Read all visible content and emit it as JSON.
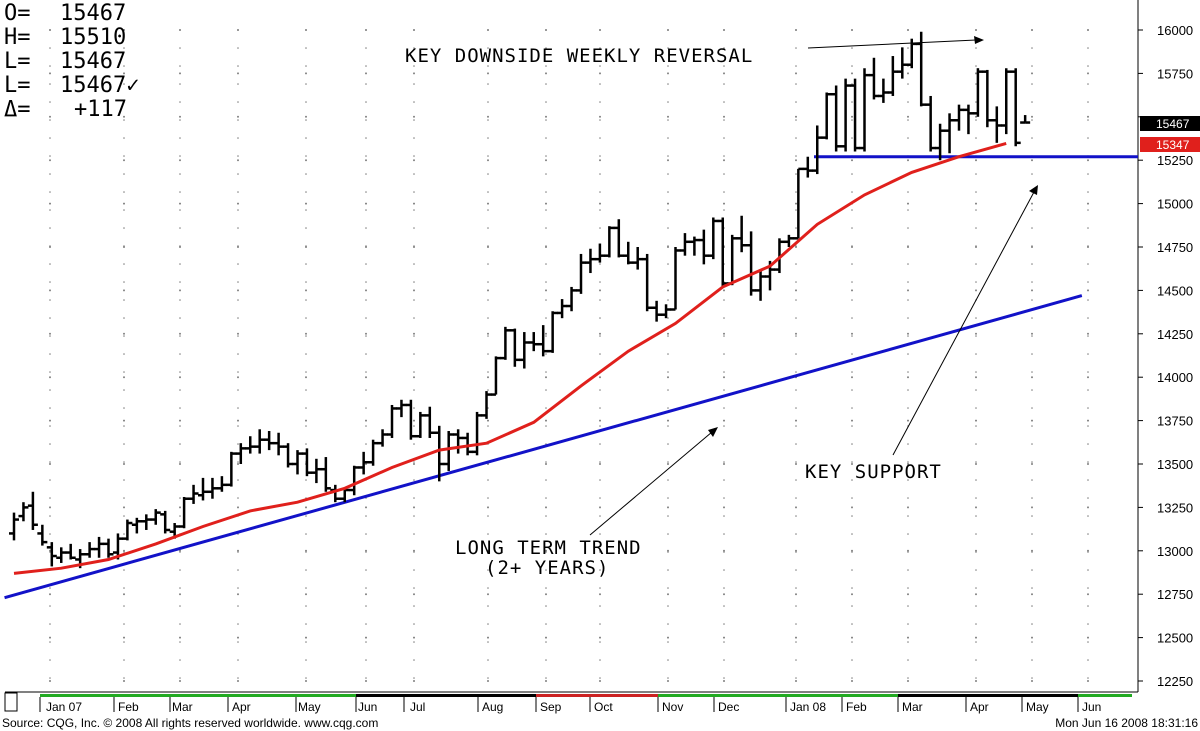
{
  "colors": {
    "background": "#ffffff",
    "price_bars": "#000000",
    "moving_average": "#e0201c",
    "trend_line": "#1212c8",
    "support_line": "#1212c8",
    "last_price_box": "#000000",
    "ma_value_box": "#e0201c",
    "grid_dots": "#808080",
    "timeline_green": "#22aa22",
    "timeline_red": "#cc2222",
    "timeline_black": "#000000"
  },
  "ohlc": [
    {
      "label": "O=",
      "value": "15467"
    },
    {
      "label": "H=",
      "value": "15510"
    },
    {
      "label": "L=",
      "value": "15467"
    },
    {
      "label": "L=",
      "value": "15467✓"
    },
    {
      "label": "Δ=",
      "value": "+117"
    }
  ],
  "annotations": {
    "reversal": "KEY DOWNSIDE WEEKLY REVERSAL",
    "support": "KEY SUPPORT",
    "trend_line1": "LONG TERM TREND",
    "trend_line2": "(2+ YEARS)"
  },
  "last_labels": {
    "price": "15467",
    "moving_average": "15347"
  },
  "footer": {
    "source": "Source: CQG, Inc. © 2008 All rights reserved worldwide. www.cqg.com",
    "timestamp": "Mon Jun 16 2008 18:31:16"
  },
  "chart_data": {
    "type": "ohlc-bar",
    "ylim": [
      12250,
      16000
    ],
    "y_ticks": [
      12250,
      12500,
      12750,
      13000,
      13250,
      13500,
      13750,
      14000,
      14250,
      14500,
      14750,
      15000,
      15250,
      15500,
      15750,
      16000
    ],
    "y_tick_labels": [
      "12250",
      "12500",
      "12750",
      "13000",
      "13250",
      "13500",
      "13750",
      "14000",
      "14250",
      "14500",
      "14750",
      "15000",
      "15250",
      "",
      "15750",
      "16000"
    ],
    "months": [
      "Jan 07",
      "Feb",
      "Mar",
      "Apr",
      "May",
      "Jun",
      "Jul",
      "Aug",
      "Sep",
      "Oct",
      "Nov",
      "Dec",
      "Jan 08",
      "Feb",
      "Mar",
      "Apr",
      "May",
      "Jun"
    ],
    "timeline_colors": [
      "green",
      "green",
      "green",
      "green",
      "green",
      "black",
      "black",
      "black",
      "red",
      "red",
      "green",
      "green",
      "green",
      "green",
      "black",
      "black",
      "black",
      "green"
    ],
    "bars": [
      {
        "o": 13100,
        "h": 13220,
        "l": 13060,
        "c": 13180
      },
      {
        "o": 13200,
        "h": 13280,
        "l": 13170,
        "c": 13250
      },
      {
        "o": 13260,
        "h": 13340,
        "l": 13120,
        "c": 13150
      },
      {
        "o": 13100,
        "h": 13150,
        "l": 13030,
        "c": 13050
      },
      {
        "o": 13020,
        "h": 13050,
        "l": 12910,
        "c": 12970
      },
      {
        "o": 12960,
        "h": 13020,
        "l": 12930,
        "c": 12990
      },
      {
        "o": 12990,
        "h": 13040,
        "l": 12950,
        "c": 12960
      },
      {
        "o": 12950,
        "h": 13010,
        "l": 12900,
        "c": 12980
      },
      {
        "o": 12980,
        "h": 13050,
        "l": 12960,
        "c": 13010
      },
      {
        "o": 13010,
        "h": 13080,
        "l": 12960,
        "c": 13040
      },
      {
        "o": 13040,
        "h": 13070,
        "l": 12960,
        "c": 12980
      },
      {
        "o": 12990,
        "h": 13100,
        "l": 12950,
        "c": 13070
      },
      {
        "o": 13070,
        "h": 13180,
        "l": 13060,
        "c": 13160
      },
      {
        "o": 13150,
        "h": 13190,
        "l": 13100,
        "c": 13170
      },
      {
        "o": 13170,
        "h": 13210,
        "l": 13120,
        "c": 13180
      },
      {
        "o": 13180,
        "h": 13240,
        "l": 13150,
        "c": 13220
      },
      {
        "o": 13210,
        "h": 13230,
        "l": 13100,
        "c": 13120
      },
      {
        "o": 13110,
        "h": 13160,
        "l": 13070,
        "c": 13140
      },
      {
        "o": 13140,
        "h": 13310,
        "l": 13130,
        "c": 13300
      },
      {
        "o": 13300,
        "h": 13380,
        "l": 13270,
        "c": 13330
      },
      {
        "o": 13320,
        "h": 13420,
        "l": 13290,
        "c": 13340
      },
      {
        "o": 13340,
        "h": 13420,
        "l": 13300,
        "c": 13360
      },
      {
        "o": 13360,
        "h": 13430,
        "l": 13340,
        "c": 13380
      },
      {
        "o": 13380,
        "h": 13570,
        "l": 13370,
        "c": 13560
      },
      {
        "o": 13560,
        "h": 13620,
        "l": 13500,
        "c": 13590
      },
      {
        "o": 13590,
        "h": 13660,
        "l": 13560,
        "c": 13600
      },
      {
        "o": 13600,
        "h": 13700,
        "l": 13560,
        "c": 13640
      },
      {
        "o": 13640,
        "h": 13690,
        "l": 13580,
        "c": 13620
      },
      {
        "o": 13620,
        "h": 13680,
        "l": 13550,
        "c": 13600
      },
      {
        "o": 13600,
        "h": 13620,
        "l": 13480,
        "c": 13500
      },
      {
        "o": 13500,
        "h": 13580,
        "l": 13440,
        "c": 13560
      },
      {
        "o": 13560,
        "h": 13590,
        "l": 13430,
        "c": 13450
      },
      {
        "o": 13450,
        "h": 13530,
        "l": 13390,
        "c": 13470
      },
      {
        "o": 13470,
        "h": 13540,
        "l": 13340,
        "c": 13360
      },
      {
        "o": 13350,
        "h": 13380,
        "l": 13280,
        "c": 13300
      },
      {
        "o": 13300,
        "h": 13360,
        "l": 13280,
        "c": 13350
      },
      {
        "o": 13350,
        "h": 13490,
        "l": 13320,
        "c": 13480
      },
      {
        "o": 13480,
        "h": 13570,
        "l": 13440,
        "c": 13510
      },
      {
        "o": 13510,
        "h": 13640,
        "l": 13490,
        "c": 13620
      },
      {
        "o": 13620,
        "h": 13700,
        "l": 13600,
        "c": 13670
      },
      {
        "o": 13670,
        "h": 13840,
        "l": 13650,
        "c": 13820
      },
      {
        "o": 13820,
        "h": 13870,
        "l": 13770,
        "c": 13840
      },
      {
        "o": 13840,
        "h": 13870,
        "l": 13640,
        "c": 13660
      },
      {
        "o": 13660,
        "h": 13800,
        "l": 13650,
        "c": 13780
      },
      {
        "o": 13780,
        "h": 13830,
        "l": 13650,
        "c": 13680
      },
      {
        "o": 13680,
        "h": 13720,
        "l": 13400,
        "c": 13500
      },
      {
        "o": 13500,
        "h": 13690,
        "l": 13460,
        "c": 13670
      },
      {
        "o": 13670,
        "h": 13700,
        "l": 13560,
        "c": 13650
      },
      {
        "o": 13650,
        "h": 13680,
        "l": 13550,
        "c": 13570
      },
      {
        "o": 13570,
        "h": 13800,
        "l": 13550,
        "c": 13780
      },
      {
        "o": 13780,
        "h": 13920,
        "l": 13760,
        "c": 13900
      },
      {
        "o": 13900,
        "h": 14120,
        "l": 13900,
        "c": 14110
      },
      {
        "o": 14110,
        "h": 14290,
        "l": 14100,
        "c": 14270
      },
      {
        "o": 14270,
        "h": 14280,
        "l": 14060,
        "c": 14100
      },
      {
        "o": 14100,
        "h": 14260,
        "l": 14050,
        "c": 14200
      },
      {
        "o": 14200,
        "h": 14260,
        "l": 14150,
        "c": 14190
      },
      {
        "o": 14190,
        "h": 14300,
        "l": 14120,
        "c": 14150
      },
      {
        "o": 14150,
        "h": 14380,
        "l": 14140,
        "c": 14370
      },
      {
        "o": 14370,
        "h": 14450,
        "l": 14340,
        "c": 14410
      },
      {
        "o": 14410,
        "h": 14520,
        "l": 14380,
        "c": 14500
      },
      {
        "o": 14500,
        "h": 14710,
        "l": 14480,
        "c": 14660
      },
      {
        "o": 14660,
        "h": 14740,
        "l": 14600,
        "c": 14680
      },
      {
        "o": 14680,
        "h": 14770,
        "l": 14660,
        "c": 14700
      },
      {
        "o": 14700,
        "h": 14870,
        "l": 14690,
        "c": 14860
      },
      {
        "o": 14860,
        "h": 14910,
        "l": 14690,
        "c": 14700
      },
      {
        "o": 14700,
        "h": 14780,
        "l": 14650,
        "c": 14660
      },
      {
        "o": 14660,
        "h": 14750,
        "l": 14620,
        "c": 14680
      },
      {
        "o": 14680,
        "h": 14710,
        "l": 14380,
        "c": 14400
      },
      {
        "o": 14400,
        "h": 14440,
        "l": 14320,
        "c": 14360
      },
      {
        "o": 14360,
        "h": 14420,
        "l": 14340,
        "c": 14390
      },
      {
        "o": 14390,
        "h": 14750,
        "l": 14390,
        "c": 14730
      },
      {
        "o": 14730,
        "h": 14830,
        "l": 14700,
        "c": 14780
      },
      {
        "o": 14780,
        "h": 14810,
        "l": 14700,
        "c": 14790
      },
      {
        "o": 14790,
        "h": 14850,
        "l": 14650,
        "c": 14700
      },
      {
        "o": 14700,
        "h": 14920,
        "l": 14680,
        "c": 14900
      },
      {
        "o": 14900,
        "h": 14920,
        "l": 14520,
        "c": 14540
      },
      {
        "o": 14540,
        "h": 14820,
        "l": 14530,
        "c": 14800
      },
      {
        "o": 14800,
        "h": 14930,
        "l": 14720,
        "c": 14760
      },
      {
        "o": 14760,
        "h": 14840,
        "l": 14470,
        "c": 14500
      },
      {
        "o": 14500,
        "h": 14620,
        "l": 14440,
        "c": 14580
      },
      {
        "o": 14580,
        "h": 14670,
        "l": 14500,
        "c": 14620
      },
      {
        "o": 14620,
        "h": 14800,
        "l": 14600,
        "c": 14780
      },
      {
        "o": 14780,
        "h": 14820,
        "l": 14750,
        "c": 14800
      },
      {
        "o": 14800,
        "h": 15200,
        "l": 14800,
        "c": 15200
      },
      {
        "o": 15200,
        "h": 15270,
        "l": 15150,
        "c": 15190
      },
      {
        "o": 15190,
        "h": 15450,
        "l": 15170,
        "c": 15380
      },
      {
        "o": 15380,
        "h": 15640,
        "l": 15370,
        "c": 15630
      },
      {
        "o": 15630,
        "h": 15680,
        "l": 15300,
        "c": 15330
      },
      {
        "o": 15330,
        "h": 15720,
        "l": 15300,
        "c": 15680
      },
      {
        "o": 15680,
        "h": 15720,
        "l": 15300,
        "c": 15320
      },
      {
        "o": 15320,
        "h": 15780,
        "l": 15300,
        "c": 15740
      },
      {
        "o": 15740,
        "h": 15840,
        "l": 15600,
        "c": 15620
      },
      {
        "o": 15620,
        "h": 15720,
        "l": 15580,
        "c": 15640
      },
      {
        "o": 15640,
        "h": 15850,
        "l": 15620,
        "c": 15760
      },
      {
        "o": 15760,
        "h": 15900,
        "l": 15720,
        "c": 15800
      },
      {
        "o": 15800,
        "h": 15950,
        "l": 15780,
        "c": 15920
      },
      {
        "o": 15920,
        "h": 15990,
        "l": 15560,
        "c": 15570
      },
      {
        "o": 15570,
        "h": 15620,
        "l": 15300,
        "c": 15320
      },
      {
        "o": 15320,
        "h": 15460,
        "l": 15250,
        "c": 15420
      },
      {
        "o": 15420,
        "h": 15520,
        "l": 15290,
        "c": 15480
      },
      {
        "o": 15480,
        "h": 15570,
        "l": 15420,
        "c": 15540
      },
      {
        "o": 15540,
        "h": 15570,
        "l": 15400,
        "c": 15520
      },
      {
        "o": 15520,
        "h": 15780,
        "l": 15500,
        "c": 15760
      },
      {
        "o": 15760,
        "h": 15770,
        "l": 15440,
        "c": 15480
      },
      {
        "o": 15480,
        "h": 15560,
        "l": 15350,
        "c": 15450
      },
      {
        "o": 15450,
        "h": 15780,
        "l": 15400,
        "c": 15760
      },
      {
        "o": 15760,
        "h": 15780,
        "l": 15330,
        "c": 15350
      },
      {
        "o": 15467,
        "h": 15510,
        "l": 15467,
        "c": 15467
      }
    ],
    "moving_average": {
      "x_index": [
        0,
        5,
        10,
        15,
        20,
        25,
        30,
        35,
        40,
        45,
        50,
        55,
        60,
        65,
        70,
        75,
        80,
        85,
        90,
        95,
        100,
        105
      ],
      "values": [
        12870,
        12900,
        12950,
        13040,
        13140,
        13230,
        13280,
        13360,
        13480,
        13580,
        13620,
        13740,
        13950,
        14150,
        14310,
        14520,
        14640,
        14880,
        15050,
        15180,
        15270,
        15347
      ]
    },
    "trend_line": {
      "start": {
        "index": -1,
        "value": 12730
      },
      "end": {
        "index": 113,
        "value": 14470
      }
    },
    "support_level": 15270
  }
}
